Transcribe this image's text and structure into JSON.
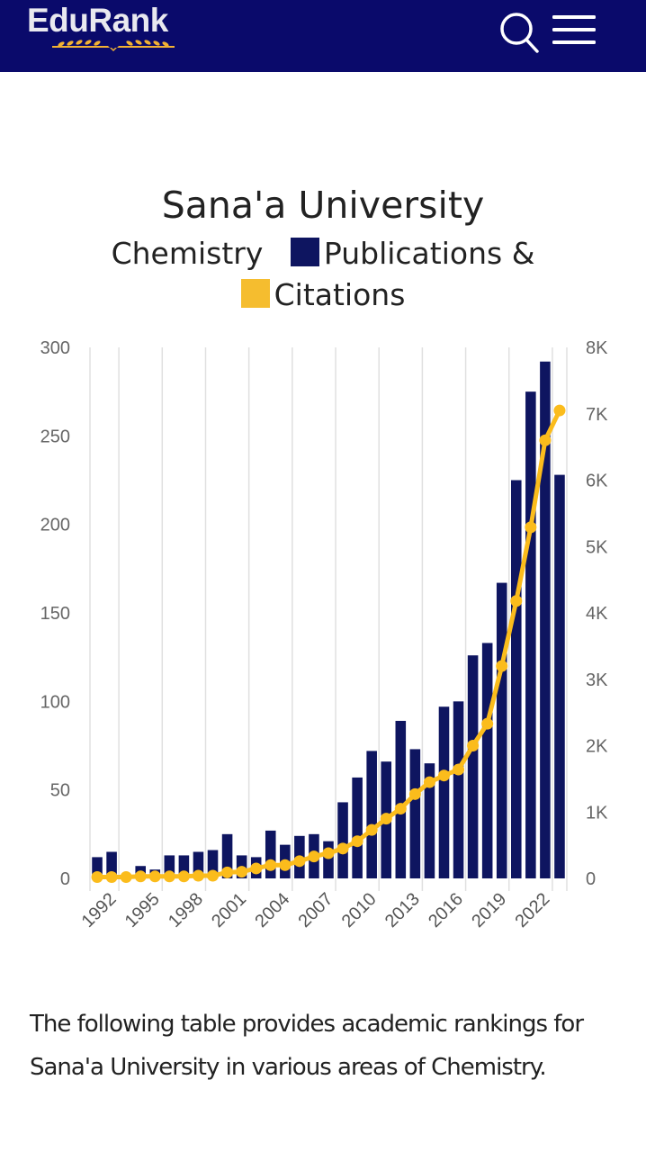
{
  "header": {
    "logo_text": "EduRank",
    "logo_icon": "laurel-icon",
    "search_icon": "search-icon",
    "menu_icon": "hamburger-menu-icon",
    "bg_color": "#0a0a6b"
  },
  "chart_title": {
    "line1": "Sana'a University",
    "line2_prefix": "Chemistry",
    "line2_series": "Publications",
    "line2_amp": "&",
    "line3_series": "Citations"
  },
  "chart_data": {
    "type": "bar",
    "title": "Sana'a University Chemistry Publications & Citations",
    "xlabel": "",
    "ylabel": "",
    "categories": [
      1991,
      1992,
      1993,
      1994,
      1995,
      1996,
      1997,
      1998,
      1999,
      2000,
      2001,
      2002,
      2003,
      2004,
      2005,
      2006,
      2007,
      2008,
      2009,
      2010,
      2011,
      2012,
      2013,
      2014,
      2015,
      2016,
      2017,
      2018,
      2019,
      2020,
      2021,
      2022,
      2023
    ],
    "x_tick_labels": [
      "1992",
      "1995",
      "1998",
      "2001",
      "2004",
      "2007",
      "2010",
      "2013",
      "2016",
      "2019",
      "2022"
    ],
    "series": [
      {
        "name": "Publications",
        "type": "bar",
        "axis": "left",
        "color": "#0e1560",
        "values": [
          12,
          15,
          0,
          7,
          5,
          13,
          13,
          15,
          16,
          25,
          13,
          12,
          27,
          19,
          24,
          25,
          21,
          43,
          57,
          72,
          66,
          89,
          73,
          65,
          97,
          100,
          126,
          133,
          167,
          225,
          275,
          292,
          228
        ]
      },
      {
        "name": "Citations",
        "type": "line",
        "axis": "right",
        "color": "#fbbc1c",
        "values": [
          20,
          20,
          20,
          30,
          30,
          30,
          30,
          40,
          40,
          90,
          100,
          150,
          200,
          200,
          260,
          330,
          380,
          450,
          560,
          730,
          900,
          1050,
          1270,
          1450,
          1550,
          1640,
          2000,
          2330,
          3200,
          4180,
          5290,
          6600,
          7050
        ]
      }
    ],
    "y_left": {
      "ylim": [
        0,
        300
      ],
      "ticks": [
        "0",
        "50",
        "100",
        "150",
        "200",
        "250",
        "300"
      ]
    },
    "y_right": {
      "ylim": [
        0,
        8000
      ],
      "ticks": [
        "0",
        "1K",
        "2K",
        "3K",
        "4K",
        "5K",
        "6K",
        "7K",
        "8K"
      ]
    },
    "grid": "vertical",
    "legend": "in-title"
  },
  "paragraph": "The following table provides academic rankings for Sana'a University in various areas of Chemistry."
}
